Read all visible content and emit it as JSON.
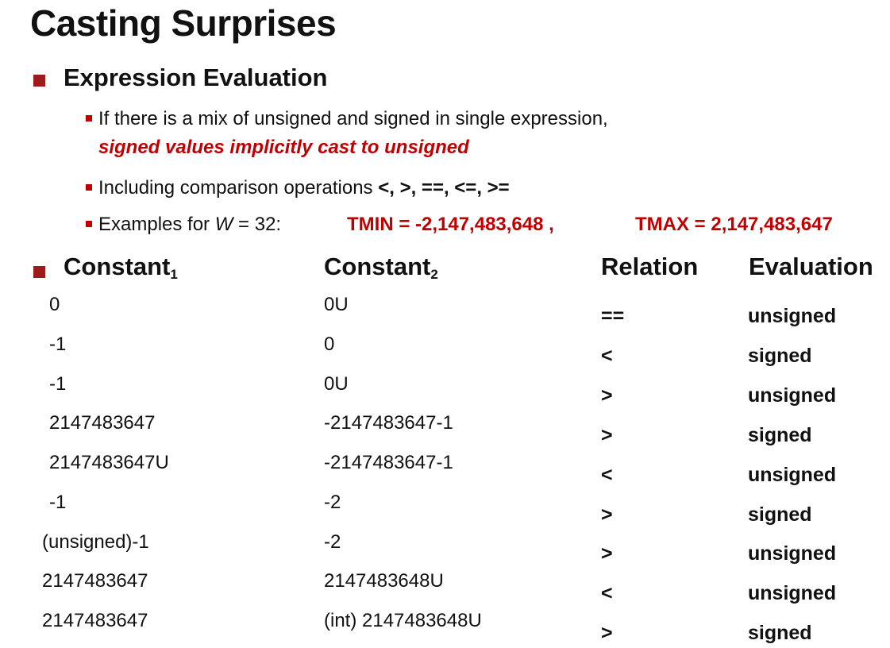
{
  "title": "Casting Surprises",
  "bullet1": "Expression Evaluation",
  "sub1_line1": "If there is a mix of unsigned and signed in single expression,",
  "sub1_line2": "signed values implicitly cast to unsigned",
  "sub2_prefix": "Including comparison operations ",
  "sub2_ops": "<, >, ==, <=, >=",
  "sub3_prefix": "Examples for ",
  "sub3_var": "W",
  "sub3_eq": " = 32:",
  "tmin": "TMIN = -2,147,483,648 ,",
  "tmax": "TMAX = 2,147,483,647",
  "headers": {
    "c1": "Constant",
    "c1_sub": "1",
    "c2": "Constant",
    "c2_sub": "2",
    "rel": "Relation",
    "eval": "Evaluation"
  },
  "rows": [
    {
      "c1": "0",
      "c2": "0U",
      "rel": "==",
      "ev": "unsigned"
    },
    {
      "c1": "-1",
      "c2": "0",
      "rel": "<",
      "ev": "signed"
    },
    {
      "c1": "-1",
      "c2": "0U",
      "rel": ">",
      "ev": "unsigned"
    },
    {
      "c1": "2147483647",
      "c2": "-2147483647-1",
      "rel": ">",
      "ev": "signed"
    },
    {
      "c1": "2147483647U",
      "c2": "-2147483647-1",
      "rel": "<",
      "ev": "unsigned"
    },
    {
      "c1": "-1",
      "c2": "-2",
      "rel": ">",
      "ev": "signed"
    },
    {
      "c1": "(unsigned)-1",
      "c2": "-2",
      "rel": ">",
      "ev": "unsigned"
    },
    {
      "c1": " 2147483647",
      "c2": "2147483648U",
      "rel": "<",
      "ev": "unsigned"
    },
    {
      "c1": " 2147483647",
      "c2": "(int) 2147483648U",
      "rel": ">",
      "ev": "signed"
    }
  ]
}
